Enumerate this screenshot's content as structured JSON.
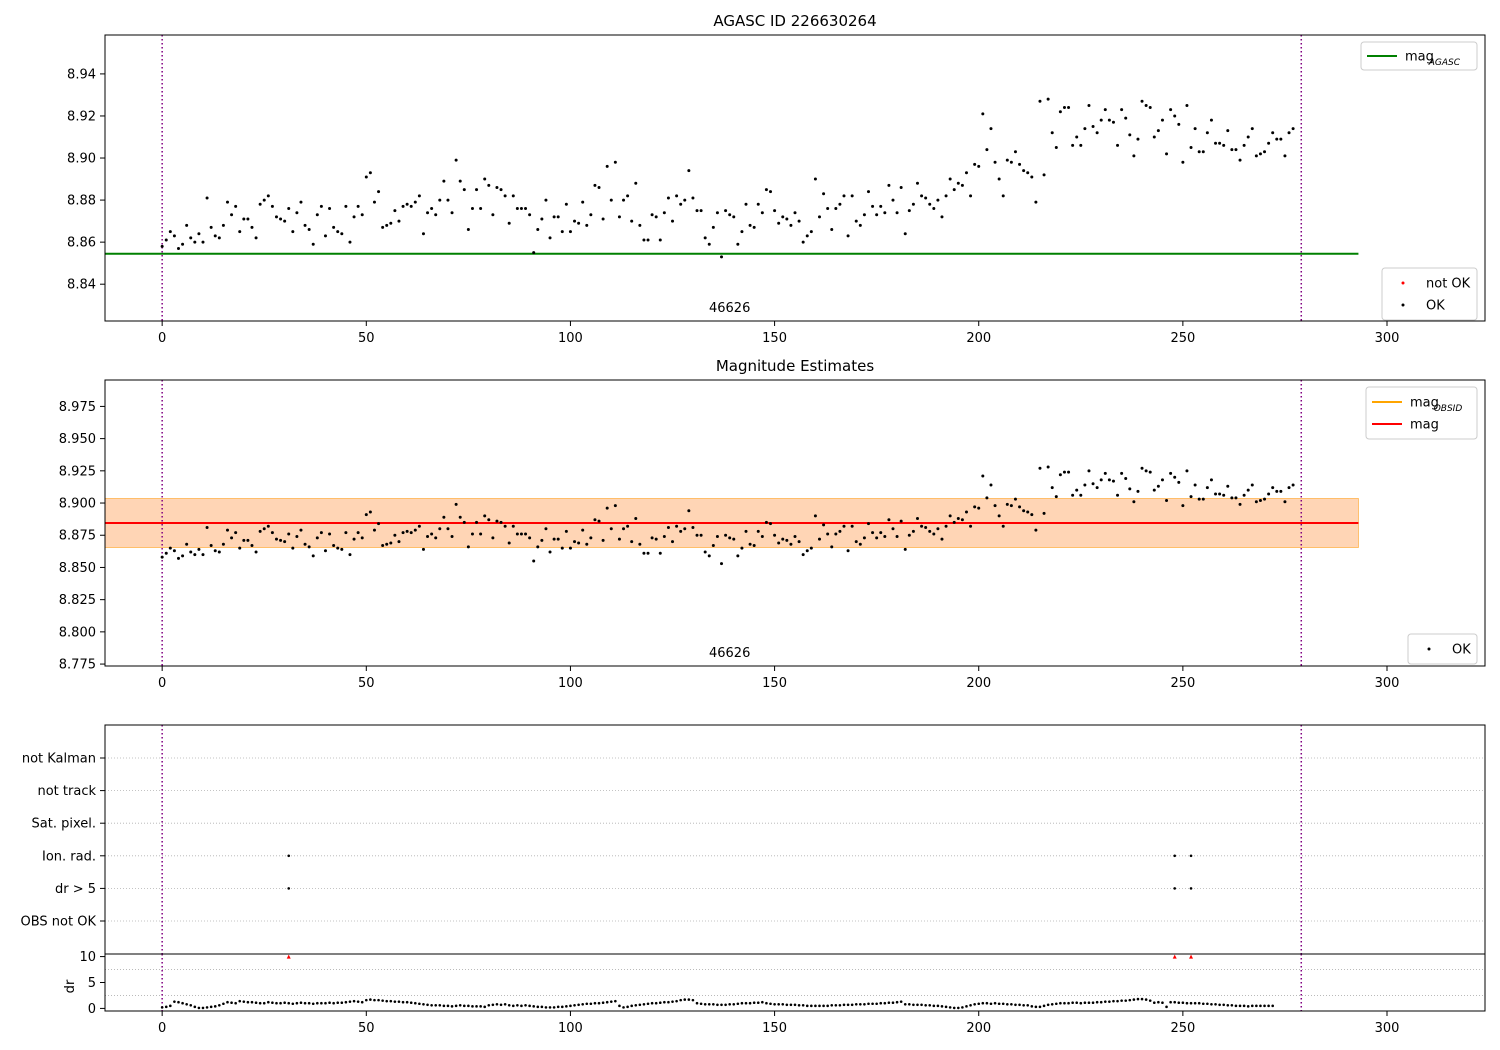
{
  "chart_data": [
    {
      "type": "scatter",
      "title": "AGASC ID 226630264",
      "xlim": [
        -14,
        324
      ],
      "ylim": [
        8.8225,
        8.9585
      ],
      "xticks": [
        0,
        50,
        100,
        150,
        200,
        250,
        300
      ],
      "yticks": [
        8.84,
        8.86,
        8.88,
        8.9,
        8.92,
        8.94
      ],
      "ytick_labels": [
        "8.84",
        "8.86",
        "8.88",
        "8.90",
        "8.92",
        "8.94"
      ],
      "vlines": {
        "x": [
          0,
          279
        ],
        "color": "#800080",
        "style": "dotted"
      },
      "hline": {
        "y": 8.8545,
        "x": [
          -14,
          293
        ],
        "color": "#008000"
      },
      "annotation": {
        "text": "46626",
        "x": 139
      },
      "legend_upper": [
        {
          "symbol": "line",
          "color": "#008000",
          "label": "mag",
          "sub": "AGASC"
        }
      ],
      "legend_lower": [
        {
          "symbol": "point",
          "color": "#ff0000",
          "label": "not OK"
        },
        {
          "symbol": "point",
          "color": "#000000",
          "label": "OK"
        }
      ],
      "series": [
        {
          "name": "OK",
          "color": "#000000",
          "y": [
            8.858,
            8.861,
            8.865,
            8.863,
            8.857,
            8.859,
            8.868,
            8.862,
            8.86,
            8.864,
            8.86,
            8.881,
            8.867,
            8.863,
            8.862,
            8.868,
            8.879,
            8.873,
            8.877,
            8.865,
            8.871,
            8.871,
            8.867,
            8.862,
            8.878,
            8.88,
            8.882,
            8.877,
            8.872,
            8.871,
            8.87,
            8.876,
            8.865,
            8.874,
            8.879,
            8.868,
            8.866,
            8.859,
            8.873,
            8.877,
            8.863,
            8.876,
            8.867,
            8.865,
            8.864,
            8.877,
            8.86,
            8.872,
            8.877,
            8.873,
            8.891,
            8.893,
            8.879,
            8.884,
            8.867,
            8.868,
            8.869,
            8.875,
            8.87,
            8.877,
            8.878,
            8.877,
            8.879,
            8.882,
            8.864,
            8.874,
            8.876,
            8.873,
            8.88,
            8.889,
            8.88,
            8.874,
            8.899,
            8.889,
            8.885,
            8.866,
            8.876,
            8.885,
            8.876,
            8.89,
            8.887,
            8.873,
            8.886,
            8.885,
            8.882,
            8.869,
            8.882,
            8.876,
            8.876,
            8.876,
            8.873,
            8.855,
            8.866,
            8.871,
            8.88,
            8.862,
            8.872,
            8.872,
            8.865,
            8.878,
            8.865,
            8.87,
            8.869,
            8.879,
            8.868,
            8.873,
            8.887,
            8.886,
            8.871,
            8.896,
            8.88,
            8.898,
            8.872,
            8.88,
            8.882,
            8.87,
            8.888,
            8.868,
            8.861,
            8.861,
            8.873,
            8.872,
            8.861,
            8.874,
            8.881,
            8.87,
            8.882,
            8.878,
            8.88,
            8.894,
            8.881,
            8.875,
            8.875,
            8.862,
            8.859,
            8.867,
            8.874,
            8.853,
            8.875,
            8.873,
            8.872,
            8.859,
            8.865,
            8.878,
            8.868,
            8.867,
            8.878,
            8.874,
            8.885,
            8.884,
            8.875,
            8.869,
            8.872,
            8.871,
            8.868,
            8.874,
            8.87,
            8.86,
            8.863,
            8.865,
            8.89,
            8.872,
            8.883,
            8.876,
            8.866,
            8.876,
            8.878,
            8.882,
            8.863,
            8.882,
            8.87,
            8.868,
            8.873,
            8.884,
            8.877,
            8.873,
            8.877,
            8.874,
            8.887,
            8.88,
            8.874,
            8.886,
            8.864,
            8.875,
            8.878,
            8.888,
            8.882,
            8.881,
            8.878,
            8.876,
            8.88,
            8.872,
            8.882,
            8.89,
            8.885,
            8.888,
            8.887,
            8.893,
            8.882,
            8.897,
            8.896,
            8.921,
            8.904,
            8.914,
            8.898,
            8.89,
            8.882,
            8.899,
            8.898,
            8.903,
            8.897,
            8.894,
            8.893,
            8.891,
            8.879,
            8.927,
            8.892,
            8.928,
            8.912,
            8.905,
            8.922,
            8.924,
            8.924,
            8.906,
            8.91,
            8.906,
            8.914,
            8.925,
            8.915,
            8.912,
            8.918,
            8.923,
            8.918,
            8.917,
            8.906,
            8.923,
            8.919,
            8.911,
            8.901,
            8.909,
            8.927,
            8.925,
            8.924,
            8.91,
            8.913,
            8.918,
            8.902,
            8.923,
            8.92,
            8.916,
            8.898,
            8.925,
            8.905,
            8.914,
            8.903,
            8.903,
            8.912,
            8.918,
            8.907,
            8.907,
            8.906,
            8.913,
            8.904,
            8.904,
            8.899,
            8.906,
            8.91,
            8.914,
            8.901,
            8.902,
            8.903,
            8.907,
            8.912,
            8.909,
            8.909,
            8.901,
            8.912,
            8.914
          ]
        }
      ]
    },
    {
      "type": "scatter",
      "title": "Magnitude Estimates",
      "xlim": [
        -14,
        324
      ],
      "ylim": [
        8.7735,
        8.9955
      ],
      "xticks": [
        0,
        50,
        100,
        150,
        200,
        250,
        300
      ],
      "yticks": [
        8.775,
        8.8,
        8.825,
        8.85,
        8.875,
        8.9,
        8.925,
        8.95,
        8.975
      ],
      "ytick_labels": [
        "8.775",
        "8.800",
        "8.825",
        "8.850",
        "8.875",
        "8.900",
        "8.925",
        "8.950",
        "8.975"
      ],
      "vlines": {
        "x": [
          0,
          279
        ],
        "color": "#800080",
        "style": "dotted"
      },
      "hline": {
        "y": 8.8845,
        "x": [
          -14,
          293
        ],
        "color": "#ff0000"
      },
      "bands": [
        {
          "y0": 8.8655,
          "y1": 8.9035,
          "x": [
            -14,
            293
          ],
          "color": "#ffc0cb",
          "opacity": 0.45
        },
        {
          "y0": 8.8655,
          "y1": 8.9035,
          "x": [
            -14,
            293
          ],
          "color": "#ffa500",
          "opacity": 0.22
        }
      ],
      "annotation": {
        "text": "46626",
        "x": 139
      },
      "legend_upper": [
        {
          "symbol": "line",
          "color": "#ffa500",
          "label": "mag",
          "sub": "OBSID"
        },
        {
          "symbol": "line",
          "color": "#ff0000",
          "label": "mag",
          "sub": ""
        }
      ],
      "legend_lower": [
        {
          "symbol": "point",
          "color": "#000000",
          "label": "OK"
        }
      ]
    },
    {
      "type": "scatter",
      "title": "",
      "xlim": [
        -14,
        324
      ],
      "category_labels": [
        "not Kalman",
        "not track",
        "Sat. pixel.",
        "Ion. rad.",
        "dr > 5",
        "OBS not OK"
      ],
      "flags": [
        {
          "category": "Ion. rad.",
          "x": [
            31,
            248,
            252
          ]
        },
        {
          "category": "dr > 5",
          "x": [
            31,
            248,
            252
          ]
        }
      ],
      "vlines": {
        "x": [
          0,
          279
        ],
        "color": "#800080",
        "style": "dotted"
      }
    },
    {
      "type": "scatter",
      "title": "",
      "ylabel": "dr",
      "xlim": [
        -14,
        324
      ],
      "ylim": [
        -0.5,
        10.5
      ],
      "xticks": [
        0,
        50,
        100,
        150,
        200,
        250,
        300
      ],
      "yticks": [
        0,
        5,
        10
      ],
      "ytick_labels": [
        "0",
        "5",
        "10"
      ],
      "vlines": {
        "x": [
          0,
          279
        ],
        "color": "#800080",
        "style": "dotted"
      },
      "outliers": {
        "x": [
          31,
          248,
          252
        ],
        "y": 10,
        "color": "#ff0000"
      },
      "series": [
        {
          "name": "dr",
          "color": "#000000",
          "y": [
            0.2,
            0.3,
            0.5,
            1.3,
            1.2,
            1.0,
            0.8,
            0.6,
            0.3,
            0.1,
            0.1,
            0.2,
            0.3,
            0.4,
            0.6,
            0.9,
            1.2,
            1.1,
            1.0,
            1.4,
            1.3,
            1.2,
            1.2,
            1.1,
            1.0,
            1.0,
            1.2,
            1.1,
            1.0,
            1.0,
            1.1,
            1.0,
            0.9,
            1.0,
            1.1,
            1.0,
            1.0,
            0.9,
            1.0,
            1.0,
            1.0,
            1.1,
            1.0,
            1.1,
            1.1,
            1.2,
            1.3,
            1.4,
            1.3,
            1.2,
            1.6,
            1.7,
            1.6,
            1.6,
            1.5,
            1.4,
            1.4,
            1.3,
            1.3,
            1.2,
            1.2,
            1.1,
            1.0,
            0.9,
            0.8,
            0.7,
            0.6,
            0.6,
            0.6,
            0.5,
            0.5,
            0.4,
            0.5,
            0.6,
            0.5,
            0.5,
            0.4,
            0.4,
            0.4,
            0.3,
            0.6,
            0.7,
            0.8,
            0.7,
            0.8,
            0.6,
            0.5,
            0.6,
            0.5,
            0.6,
            0.5,
            0.4,
            0.3,
            0.3,
            0.2,
            0.2,
            0.2,
            0.3,
            0.3,
            0.4,
            0.5,
            0.6,
            0.7,
            0.8,
            0.9,
            0.9,
            1.0,
            1.0,
            1.1,
            1.2,
            1.3,
            1.4,
            0.5,
            0.2,
            0.3,
            0.5,
            0.6,
            0.7,
            0.8,
            0.9,
            1.0,
            1.0,
            1.1,
            1.2,
            1.2,
            1.3,
            1.4,
            1.6,
            1.7,
            1.7,
            1.6,
            1.0,
            0.9,
            0.8,
            0.8,
            0.8,
            0.7,
            0.7,
            0.7,
            0.8,
            0.8,
            0.9,
            1.0,
            1.0,
            1.0,
            1.1,
            1.1,
            1.2,
            1.0,
            0.9,
            0.8,
            0.8,
            0.8,
            0.7,
            0.7,
            0.7,
            0.6,
            0.6,
            0.5,
            0.5,
            0.5,
            0.5,
            0.5,
            0.5,
            0.6,
            0.6,
            0.6,
            0.7,
            0.7,
            0.7,
            0.8,
            0.8,
            0.8,
            0.9,
            0.9,
            0.9,
            1.0,
            1.0,
            1.1,
            1.1,
            1.2,
            1.3,
            0.8,
            0.8,
            0.7,
            0.7,
            0.7,
            0.6,
            0.6,
            0.5,
            0.5,
            0.4,
            0.3,
            0.2,
            0.1,
            0.1,
            0.2,
            0.4,
            0.6,
            0.8,
            0.9,
            1.0,
            1.0,
            0.9,
            1.0,
            0.9,
            0.9,
            0.8,
            0.8,
            0.7,
            0.7,
            0.6,
            0.6,
            0.4,
            0.3,
            0.3,
            0.5,
            0.7,
            0.8,
            0.9,
            1.0,
            1.0,
            1.0,
            1.1,
            1.1,
            1.0,
            1.1,
            1.1,
            1.1,
            1.2,
            1.2,
            1.3,
            1.3,
            1.4,
            1.4,
            1.5,
            1.5,
            1.6,
            1.7,
            1.8,
            1.8,
            1.7,
            1.5,
            1.1,
            1.2,
            1.1,
            0.3,
            1.2,
            1.2,
            1.1,
            1.1,
            1.0,
            1.0,
            1.0,
            1.0,
            0.9,
            0.9,
            0.8,
            0.8,
            0.7,
            0.7,
            0.6,
            0.6,
            0.5,
            0.5,
            0.5,
            0.4,
            0.5,
            0.5,
            0.5,
            0.5,
            0.5,
            0.5
          ]
        }
      ]
    }
  ]
}
